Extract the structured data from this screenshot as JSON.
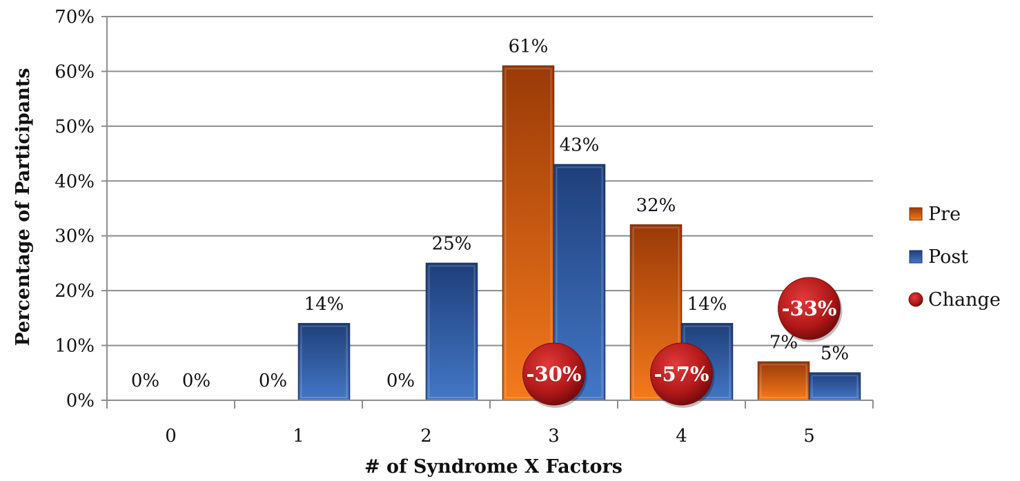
{
  "chart_data": {
    "type": "bar",
    "categories": [
      "0",
      "1",
      "2",
      "3",
      "4",
      "5"
    ],
    "series": [
      {
        "name": "Pre",
        "values": [
          0,
          0,
          0,
          61,
          32,
          7
        ],
        "labels": [
          "0%",
          "0%",
          "0%",
          "61%",
          "32%",
          "7%"
        ],
        "color": "#e0620f"
      },
      {
        "name": "Post",
        "values": [
          0,
          14,
          25,
          43,
          14,
          5
        ],
        "labels": [
          "0%",
          "14%",
          "25%",
          "43%",
          "14%",
          "5%"
        ],
        "color": "#2f5aa3"
      }
    ],
    "change": {
      "name": "Change",
      "color": "#b31b1b",
      "points": [
        {
          "category": "3",
          "label": "-30%"
        },
        {
          "category": "4",
          "label": "-57%"
        },
        {
          "category": "5",
          "label": "-33%"
        }
      ]
    },
    "xlabel": "# of Syndrome X Factors",
    "ylabel": "Percentage of Participants",
    "ylim": [
      0,
      70
    ],
    "ytick_labels": [
      "0%",
      "10%",
      "20%",
      "30%",
      "40%",
      "50%",
      "60%",
      "70%"
    ],
    "grid": true,
    "legend_position": "right"
  }
}
